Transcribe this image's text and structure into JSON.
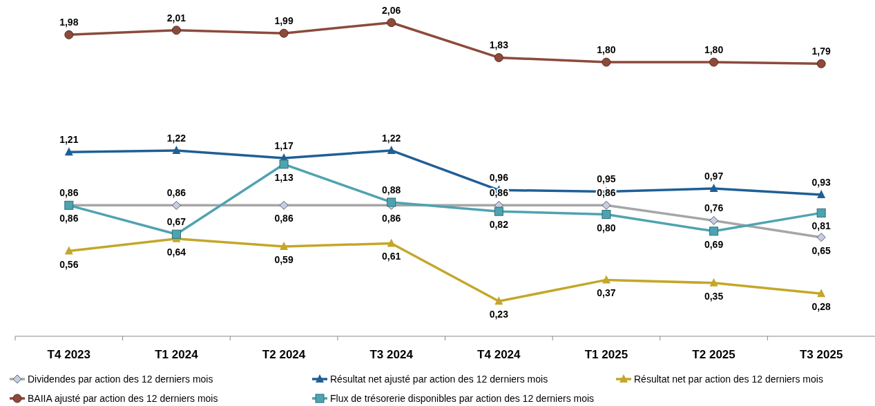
{
  "chart_data": {
    "type": "line",
    "categories": [
      "T4 2023",
      "T1 2024",
      "T2 2024",
      "T3 2024",
      "T4 2024",
      "T1 2025",
      "T2 2025",
      "T3 2025"
    ],
    "legend": "bottom",
    "data_labels": true,
    "series": [
      {
        "name": "Dividendes par action des 12 derniers mois",
        "color": "#a6a6a6",
        "marker": "diamond",
        "values": [
          0.86,
          0.86,
          0.86,
          0.86,
          0.86,
          0.86,
          0.76,
          0.65
        ],
        "value_labels": [
          "0,86",
          "0,86",
          "0,86",
          "0,86",
          "0,86",
          "0,86",
          "0,76",
          "0,65"
        ]
      },
      {
        "name": "Résultat net ajusté par action des 12 derniers mois",
        "color": "#1f5f96",
        "marker": "triangle",
        "values": [
          1.21,
          1.22,
          1.17,
          1.22,
          0.96,
          0.95,
          0.97,
          0.93
        ],
        "value_labels": [
          "1,21",
          "1,22",
          "1,17",
          "1,22",
          "0,96",
          "0,95",
          "0,97",
          "0,93"
        ]
      },
      {
        "name": "Résultat net par action des 12 derniers mois",
        "color": "#c4a72a",
        "marker": "triangle",
        "values": [
          0.56,
          0.64,
          0.59,
          0.61,
          0.23,
          0.37,
          0.35,
          0.28
        ],
        "value_labels": [
          "0,56",
          "0,64",
          "0,59",
          "0,61",
          "0,23",
          "0,37",
          "0,35",
          "0,28"
        ]
      },
      {
        "name": "BAIIA ajusté par action des 12 derniers mois",
        "color": "#8c4a3b",
        "marker": "circle",
        "values": [
          1.98,
          2.01,
          1.99,
          2.06,
          1.83,
          1.8,
          1.8,
          1.79
        ],
        "value_labels": [
          "1,98",
          "2,01",
          "1,99",
          "2,06",
          "1,83",
          "1,80",
          "1,80",
          "1,79"
        ]
      },
      {
        "name": "Flux de trésorerie disponibles par action des 12 derniers mois",
        "color": "#4fa3b0",
        "marker": "square",
        "values": [
          0.86,
          0.67,
          1.13,
          0.88,
          0.82,
          0.8,
          0.69,
          0.81
        ],
        "value_labels": [
          "0,86",
          "0,67",
          "1,13",
          "0,88",
          "0,82",
          "0,80",
          "0,69",
          "0,81"
        ]
      }
    ]
  }
}
